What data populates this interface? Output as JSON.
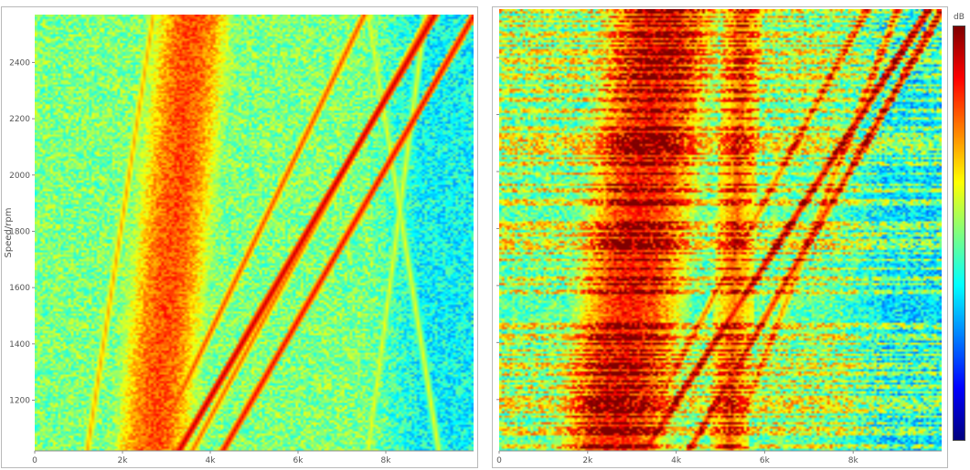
{
  "chart_data": [
    {
      "type": "heatmap",
      "title": "",
      "xlabel": "",
      "ylabel": "Speed/rpm",
      "x_ticks": [
        {
          "value": 0,
          "label": "0"
        },
        {
          "value": 2000,
          "label": "2k"
        },
        {
          "value": 4000,
          "label": "4k"
        },
        {
          "value": 6000,
          "label": "6k"
        },
        {
          "value": 8000,
          "label": "8k"
        }
      ],
      "y_ticks": [
        {
          "value": 1200,
          "label": "1200"
        },
        {
          "value": 1400,
          "label": "1400"
        },
        {
          "value": 1600,
          "label": "1600"
        },
        {
          "value": 1800,
          "label": "1800"
        },
        {
          "value": 2000,
          "label": "2000"
        },
        {
          "value": 2200,
          "label": "2200"
        },
        {
          "value": 2400,
          "label": "2400"
        }
      ],
      "xlim": [
        0,
        10000
      ],
      "ylim": [
        1020,
        2570
      ],
      "colormap": "jet",
      "features": {
        "broadband_band": {
          "x_center": [
            2700,
            3600
          ],
          "width": 1700,
          "level": 0.8
        },
        "order_lines": [
          {
            "x_at_ymin": 1200,
            "x_at_ymax": 2700,
            "level": 0.72
          },
          {
            "x_at_ymin": 3300,
            "x_at_ymax": 9100,
            "level": 0.95
          },
          {
            "x_at_ymin": 4300,
            "x_at_ymax": 10000,
            "level": 0.9
          },
          {
            "x_at_ymin": 2700,
            "x_at_ymax": 7500,
            "level": 0.82
          },
          {
            "x_at_ymin": 3600,
            "x_at_ymax": 9000,
            "level": 0.8
          },
          {
            "x_at_ymin": 7600,
            "x_at_ymax": 8900,
            "level": 0.62
          },
          {
            "x_at_ymin": 9200,
            "x_at_ymax": 7600,
            "level": 0.62
          }
        ]
      }
    },
    {
      "type": "heatmap",
      "title": "",
      "xlabel": "",
      "ylabel": "",
      "x_ticks": [
        {
          "value": 0,
          "label": "0"
        },
        {
          "value": 2000,
          "label": "2k"
        },
        {
          "value": 4000,
          "label": "4k"
        },
        {
          "value": 6000,
          "label": "6k"
        },
        {
          "value": 8000,
          "label": "8k"
        }
      ],
      "y_ticks": [
        {
          "value": 1200,
          "label": ""
        },
        {
          "value": 1400,
          "label": ""
        },
        {
          "value": 1600,
          "label": ""
        },
        {
          "value": 1800,
          "label": ""
        },
        {
          "value": 2000,
          "label": ""
        },
        {
          "value": 2200,
          "label": ""
        },
        {
          "value": 2400,
          "label": ""
        }
      ],
      "xlim": [
        0,
        10000
      ],
      "ylim": [
        1020,
        2570
      ],
      "colormap": "jet",
      "colorbar": {
        "label": "dB"
      },
      "features": {
        "broadband_band": {
          "x_center": [
            2600,
            3700
          ],
          "width": 2200,
          "level": 0.88
        },
        "secondary_band": {
          "x_center": [
            5200,
            5500
          ],
          "width": 900,
          "level": 0.8
        },
        "horizontal_striping": true,
        "order_lines": [
          {
            "x_at_ymin": 3300,
            "x_at_ymax": 9700,
            "level": 0.95
          },
          {
            "x_at_ymin": 4300,
            "x_at_ymax": 10000,
            "level": 0.9
          },
          {
            "x_at_ymin": 3000,
            "x_at_ymax": 8300,
            "level": 0.82
          },
          {
            "x_at_ymin": 5200,
            "x_at_ymax": 9000,
            "level": 0.78
          }
        ]
      }
    }
  ]
}
